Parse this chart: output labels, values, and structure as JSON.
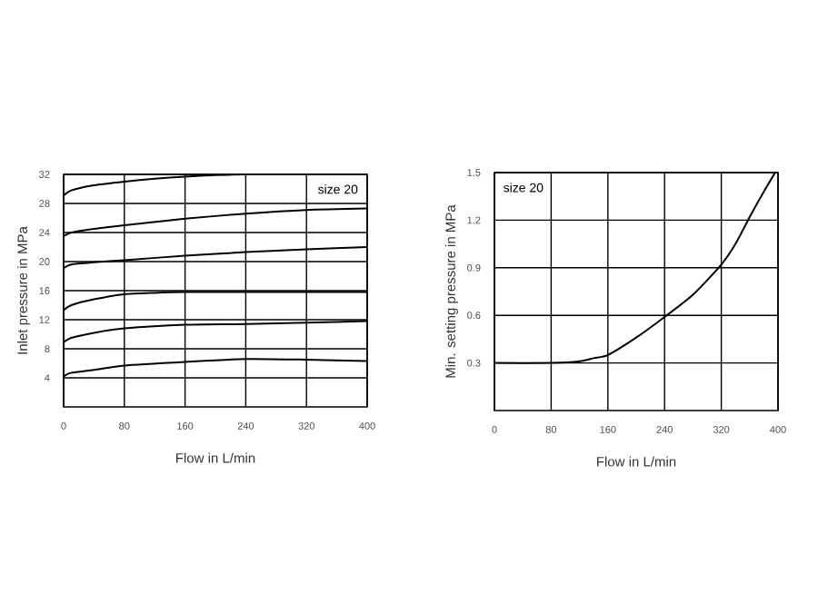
{
  "chart_data": [
    {
      "type": "line",
      "xlabel": "Flow in L/min",
      "ylabel": "Inlet pressure in MPa",
      "xlim": [
        0,
        400
      ],
      "ylim": [
        0,
        32
      ],
      "xticks": [
        0,
        80,
        160,
        240,
        320,
        400
      ],
      "yticks": [
        4,
        8,
        12,
        16,
        20,
        24,
        28,
        32
      ],
      "grid": true,
      "annotations": [
        "size 20"
      ],
      "series": [
        {
          "color": "#000000",
          "x": [
            0,
            10,
            40,
            80,
            120,
            160,
            200,
            240
          ],
          "values": [
            29.1,
            29.8,
            30.5,
            31.0,
            31.4,
            31.7,
            31.9,
            32.0
          ]
        },
        {
          "color": "#000000",
          "x": [
            0,
            10,
            40,
            80,
            160,
            240,
            320,
            400
          ],
          "values": [
            23.5,
            24.0,
            24.5,
            25.0,
            25.9,
            26.6,
            27.1,
            27.3
          ]
        },
        {
          "color": "#000000",
          "x": [
            0,
            10,
            40,
            80,
            160,
            240,
            320,
            400
          ],
          "values": [
            19.1,
            19.6,
            19.9,
            20.2,
            20.8,
            21.3,
            21.7,
            22.0
          ]
        },
        {
          "color": "#000000",
          "x": [
            0,
            10,
            40,
            80,
            120,
            160,
            240,
            320,
            400
          ],
          "values": [
            13.3,
            14.0,
            14.8,
            15.5,
            15.7,
            15.8,
            15.8,
            15.8,
            15.8
          ]
        },
        {
          "color": "#000000",
          "x": [
            0,
            10,
            40,
            80,
            160,
            240,
            320,
            400
          ],
          "values": [
            8.9,
            9.5,
            10.2,
            10.8,
            11.3,
            11.4,
            11.6,
            11.8
          ]
        },
        {
          "color": "#000000",
          "x": [
            0,
            10,
            40,
            80,
            160,
            240,
            320,
            400
          ],
          "values": [
            4.2,
            4.7,
            5.1,
            5.7,
            6.2,
            6.6,
            6.5,
            6.3
          ]
        }
      ]
    },
    {
      "type": "line",
      "xlabel": "Flow in L/min",
      "ylabel": "Min. setting pressure in MPa",
      "xlim": [
        0,
        400
      ],
      "ylim": [
        0,
        1.5
      ],
      "xticks": [
        0,
        80,
        160,
        240,
        320,
        400
      ],
      "yticks": [
        0.3,
        0.6,
        0.9,
        1.2,
        1.5
      ],
      "grid": true,
      "annotations": [
        "size 20"
      ],
      "series": [
        {
          "color": "#000000",
          "x": [
            0,
            80,
            120,
            140,
            160,
            200,
            240,
            280,
            320,
            340,
            360,
            380,
            396
          ],
          "values": [
            0.3,
            0.3,
            0.31,
            0.33,
            0.35,
            0.46,
            0.59,
            0.73,
            0.92,
            1.05,
            1.22,
            1.38,
            1.5
          ]
        }
      ]
    }
  ]
}
